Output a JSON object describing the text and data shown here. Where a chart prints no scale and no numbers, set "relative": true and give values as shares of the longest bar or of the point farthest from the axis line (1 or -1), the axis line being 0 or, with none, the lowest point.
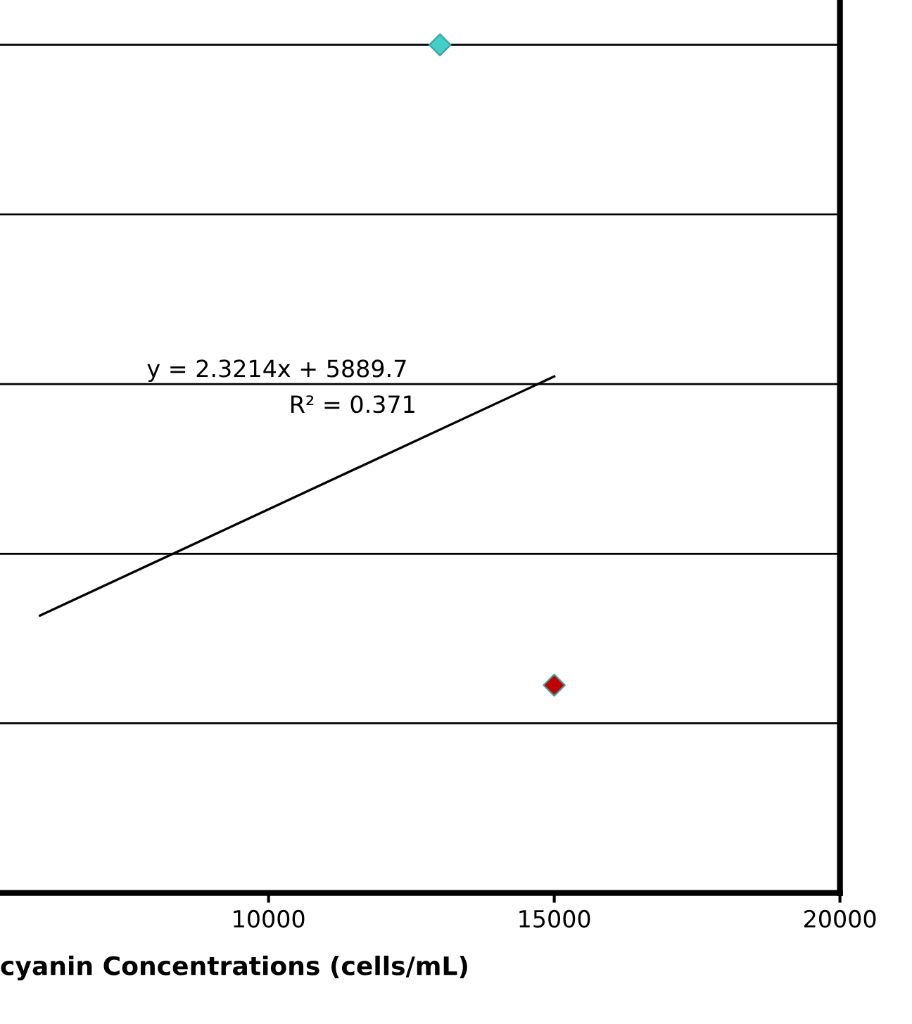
{
  "chart_data": {
    "type": "scatter",
    "xlabel": "cyanin Concentrations (cells/mL)",
    "relative": true,
    "xlim": [
      5300,
      20000
    ],
    "xticks": [
      10000,
      15000,
      20000
    ],
    "grid": "y",
    "tick_labels": "x",
    "legend": false,
    "series": [
      {
        "color": "#40d0c8",
        "marker": "diamond",
        "x": [
          13000
        ],
        "values": [
          1
        ]
      },
      {
        "color": "#c00000",
        "marker": "diamond",
        "x": [
          15000
        ],
        "values": [
          0.245
        ]
      },
      {
        "type": "line",
        "color": "#000000",
        "x": [
          6000,
          15000
        ],
        "values": [
          0.327,
          0.609
        ]
      }
    ],
    "annotations": [
      "y = 2.3214x + 5889.7",
      "R² = 0.371"
    ]
  }
}
